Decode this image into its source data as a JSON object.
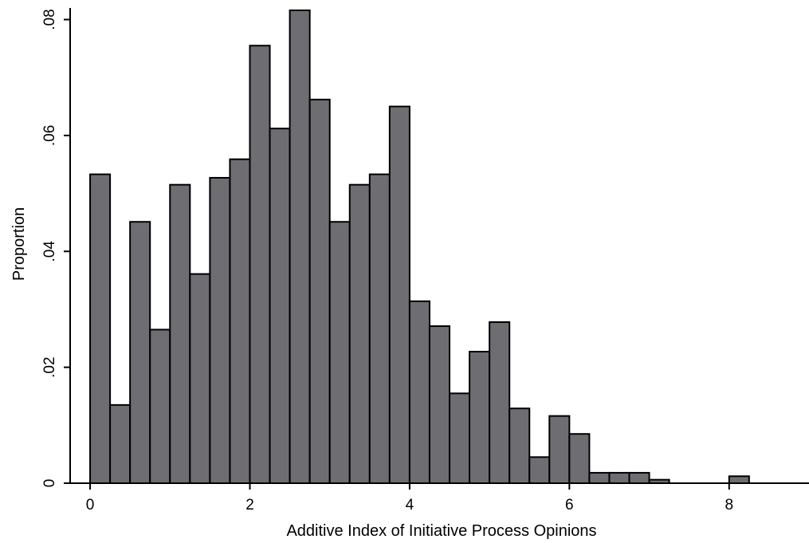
{
  "chart_data": {
    "type": "bar",
    "xlabel": "Additive Index of Initiative Process Opinions",
    "ylabel": "Proportion",
    "xlim": [
      -0.25,
      9.0
    ],
    "ylim": [
      0,
      0.082
    ],
    "x_ticks": [
      0,
      2,
      4,
      6,
      8
    ],
    "x_tick_labels": [
      "0",
      "2",
      "4",
      "6",
      "8"
    ],
    "y_ticks": [
      0,
      0.02,
      0.04,
      0.06,
      0.08
    ],
    "y_tick_labels": [
      "0",
      ".02",
      ".04",
      ".06",
      ".08"
    ],
    "bin_width": 0.25,
    "bins": [
      {
        "x0": 0.0,
        "value": 0.0533
      },
      {
        "x0": 0.25,
        "value": 0.0135
      },
      {
        "x0": 0.5,
        "value": 0.0451
      },
      {
        "x0": 0.75,
        "value": 0.0265
      },
      {
        "x0": 1.0,
        "value": 0.0515
      },
      {
        "x0": 1.25,
        "value": 0.0361
      },
      {
        "x0": 1.5,
        "value": 0.0527
      },
      {
        "x0": 1.75,
        "value": 0.0559
      },
      {
        "x0": 2.0,
        "value": 0.0755
      },
      {
        "x0": 2.25,
        "value": 0.0612
      },
      {
        "x0": 2.5,
        "value": 0.0816
      },
      {
        "x0": 2.75,
        "value": 0.0662
      },
      {
        "x0": 3.0,
        "value": 0.0451
      },
      {
        "x0": 3.25,
        "value": 0.0515
      },
      {
        "x0": 3.5,
        "value": 0.0533
      },
      {
        "x0": 3.75,
        "value": 0.065
      },
      {
        "x0": 4.0,
        "value": 0.0314
      },
      {
        "x0": 4.25,
        "value": 0.0271
      },
      {
        "x0": 4.5,
        "value": 0.0155
      },
      {
        "x0": 4.75,
        "value": 0.0227
      },
      {
        "x0": 5.0,
        "value": 0.0278
      },
      {
        "x0": 5.25,
        "value": 0.0129
      },
      {
        "x0": 5.5,
        "value": 0.0045
      },
      {
        "x0": 5.75,
        "value": 0.0116
      },
      {
        "x0": 6.0,
        "value": 0.0085
      },
      {
        "x0": 6.25,
        "value": 0.0018
      },
      {
        "x0": 6.5,
        "value": 0.0018
      },
      {
        "x0": 6.75,
        "value": 0.0018
      },
      {
        "x0": 7.0,
        "value": 0.0006
      },
      {
        "x0": 8.0,
        "value": 0.0012
      }
    ],
    "grid": false,
    "legend": "none",
    "bar_color": "#6e6e72"
  }
}
